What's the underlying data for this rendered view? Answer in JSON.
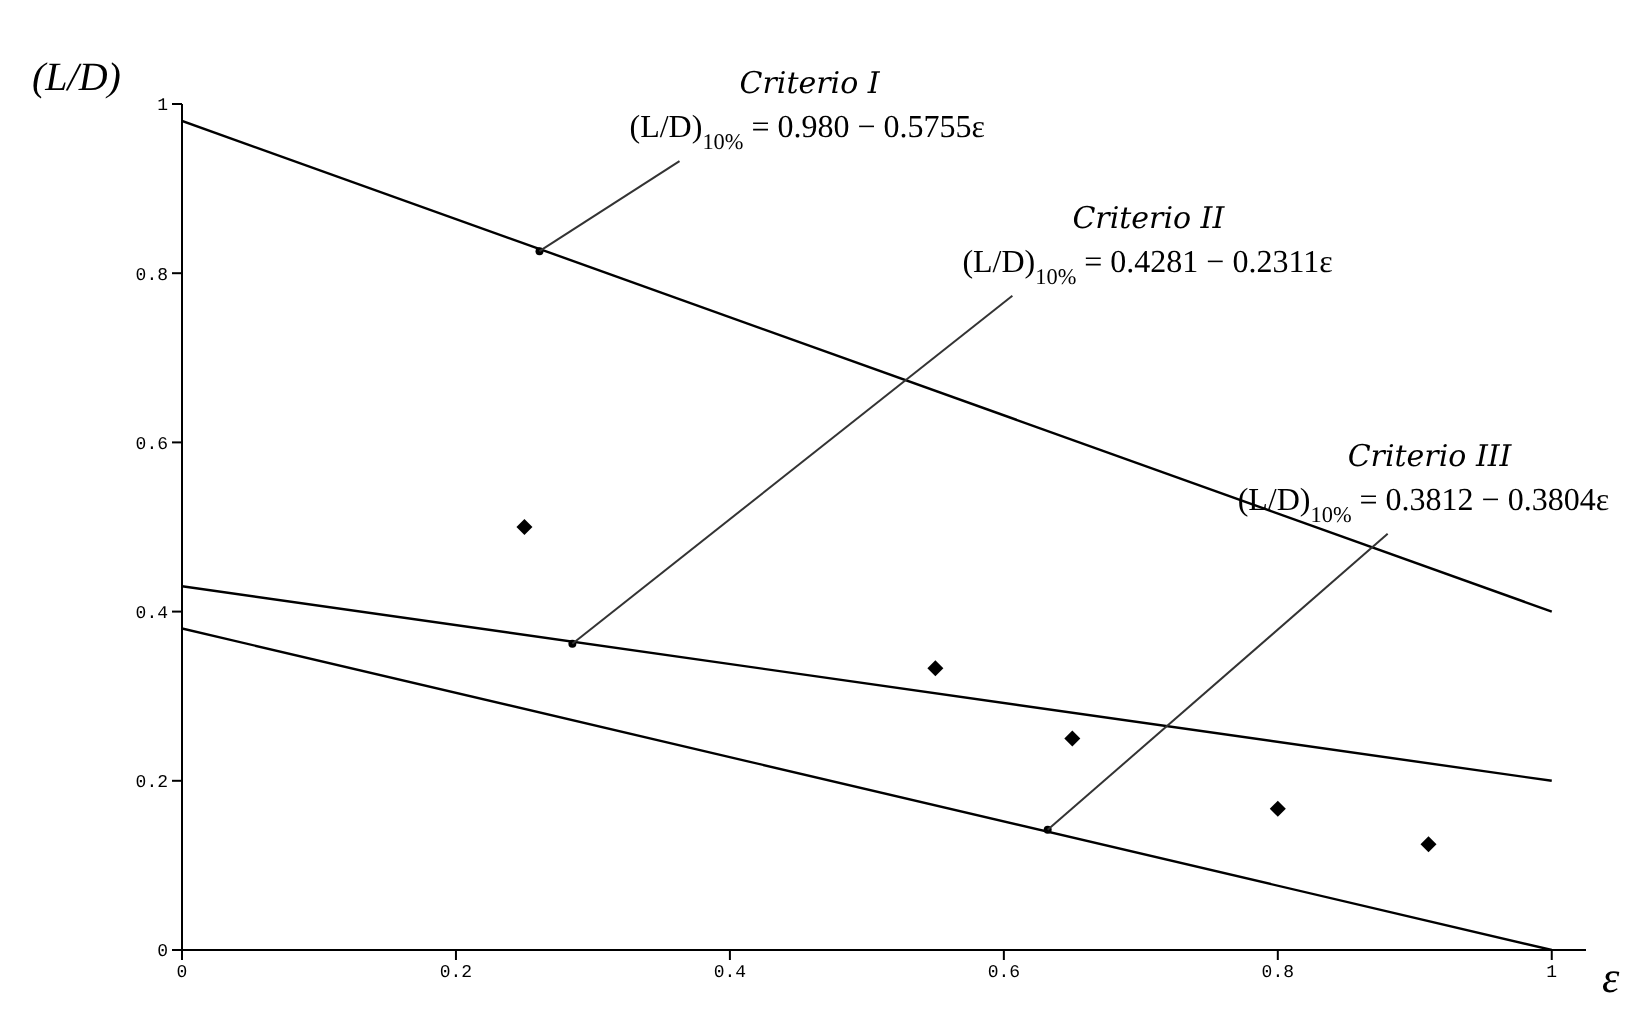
{
  "chart_data": {
    "type": "line",
    "xlabel": "ε",
    "ylabel": "(L/D)",
    "xlim": [
      0,
      1.025
    ],
    "ylim": [
      0,
      1
    ],
    "xticks": [
      0,
      0.2,
      0.4,
      0.6,
      0.8,
      1
    ],
    "yticks": [
      0,
      0.2,
      0.4,
      0.6,
      0.8,
      1
    ],
    "line_style": "solid",
    "legend": false,
    "series": [
      {
        "type": "line",
        "color": "#000000",
        "x": [
          0,
          1
        ],
        "values": [
          0.98,
          0.4
        ]
      },
      {
        "type": "line",
        "color": "#000000",
        "x": [
          0,
          1
        ],
        "values": [
          0.43,
          0.2
        ]
      },
      {
        "type": "line",
        "color": "#000000",
        "x": [
          0,
          1
        ],
        "values": [
          0.38,
          0.0
        ]
      },
      {
        "type": "scatter",
        "color": "#000000",
        "marker": "diamond",
        "x": [
          0.25,
          0.55,
          0.65,
          0.8,
          0.91
        ],
        "values": [
          0.5,
          0.333,
          0.25,
          0.167,
          0.125
        ]
      }
    ],
    "annotations": [
      "Criterio I",
      {
        "text": "(L/D)$_{10%}$ = 0.980 − 0.5755ε",
        "x": 0.261,
        "y": 0.826
      },
      "Criterio II",
      {
        "text": "(L/D)$_{10%}$ = 0.4281 − 0.2311ε",
        "x": 0.285,
        "y": 0.362
      },
      "Criterio III",
      {
        "text": "(L/D)$_{10%}$ = 0.3812 − 0.3804ε",
        "x": 0.632,
        "y": 0.142
      }
    ]
  }
}
